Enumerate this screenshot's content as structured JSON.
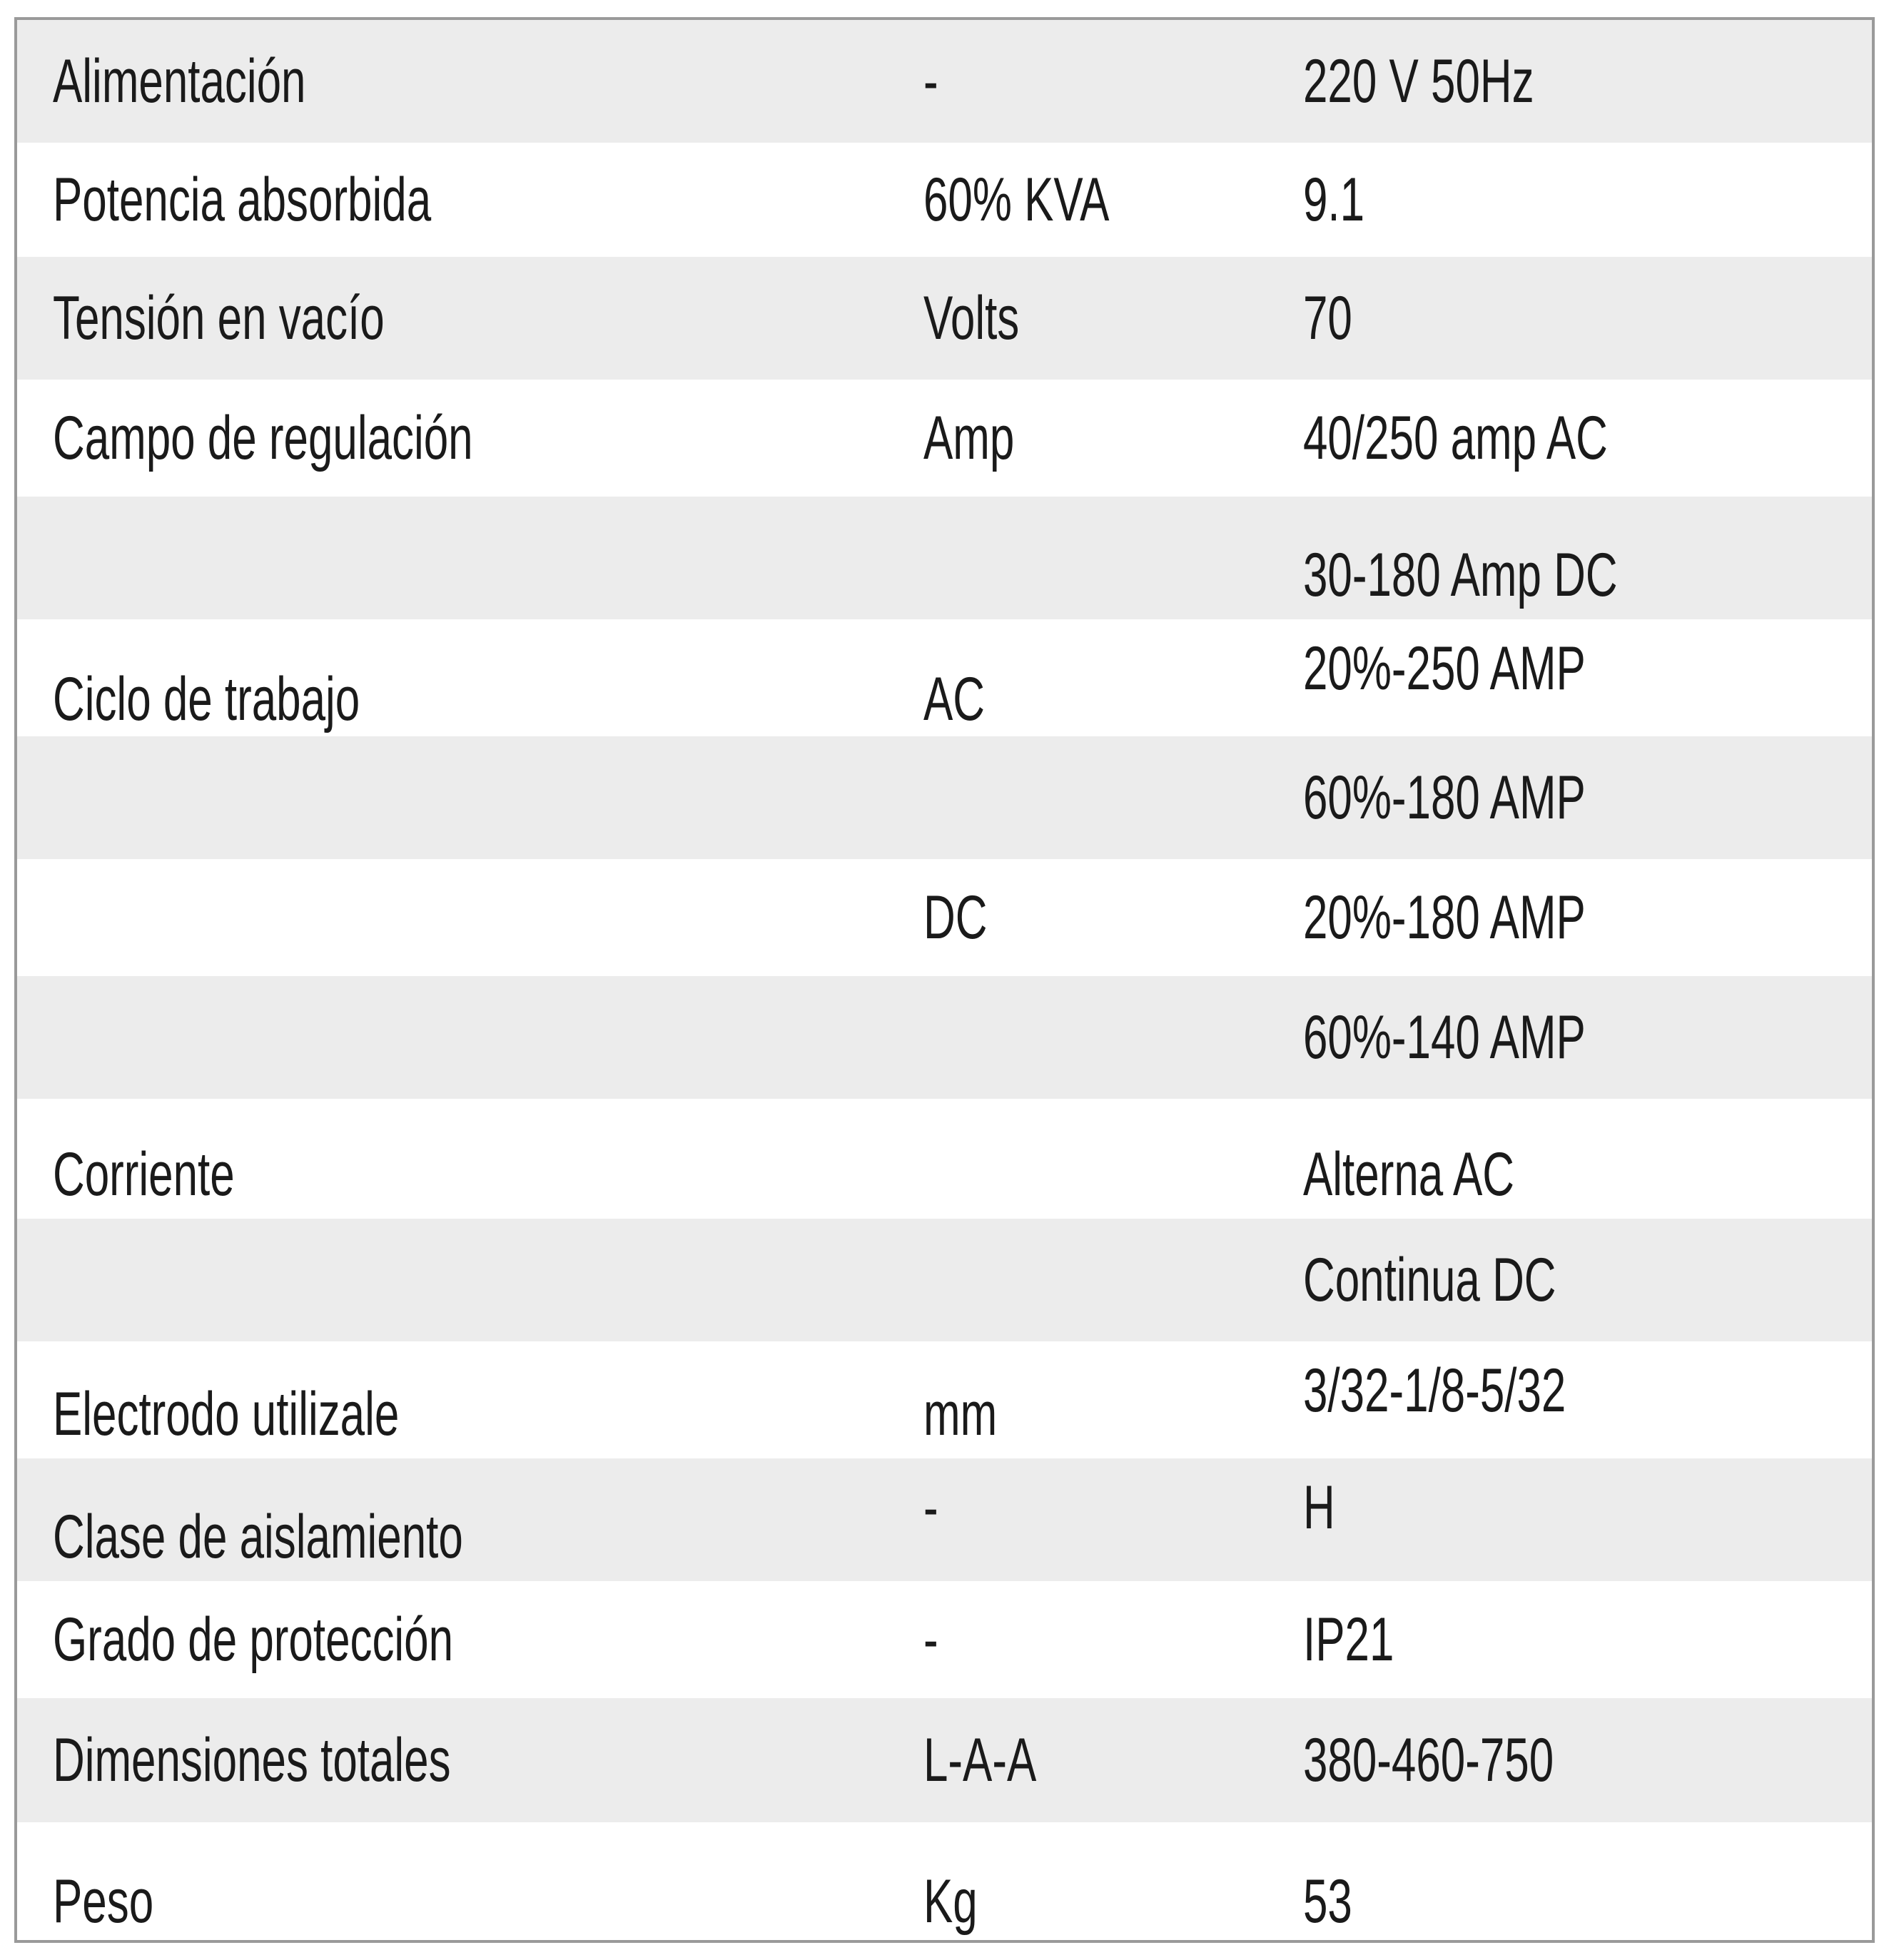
{
  "table": {
    "rows": [
      {
        "param": "Alimentación",
        "unit": "-",
        "value": "220 V 50Hz"
      },
      {
        "param": "Potencia absorbida",
        "unit": "60% KVA",
        "value": "9.1"
      },
      {
        "param": "Tensión en vacío",
        "unit": "Volts",
        "value": "70"
      },
      {
        "param": "Campo de regulación",
        "unit": "Amp",
        "value": "40/250 amp AC"
      },
      {
        "param": "",
        "unit": "",
        "value": "30-180 Amp DC"
      },
      {
        "param": "Ciclo de trabajo",
        "unit": "AC",
        "value": "20%-250 AMP"
      },
      {
        "param": "",
        "unit": "",
        "value": "60%-180 AMP"
      },
      {
        "param": "",
        "unit": "DC",
        "value": "20%-180 AMP"
      },
      {
        "param": "",
        "unit": "",
        "value": "60%-140 AMP"
      },
      {
        "param": "Corriente",
        "unit": "",
        "value": "Alterna AC"
      },
      {
        "param": "",
        "unit": "",
        "value": "Continua DC"
      },
      {
        "param": "Electrodo utilizale",
        "unit": "mm",
        "value": "3/32-1/8-5/32"
      },
      {
        "param": "Clase de aislamiento",
        "unit": "-",
        "value": "H"
      },
      {
        "param": "Grado de protección",
        "unit": "-",
        "value": "IP21"
      },
      {
        "param": "Dimensiones totales",
        "unit": "L-A-A",
        "value": "380-460-750"
      },
      {
        "param": "Peso",
        "unit": "Kg",
        "value": "53"
      }
    ]
  }
}
